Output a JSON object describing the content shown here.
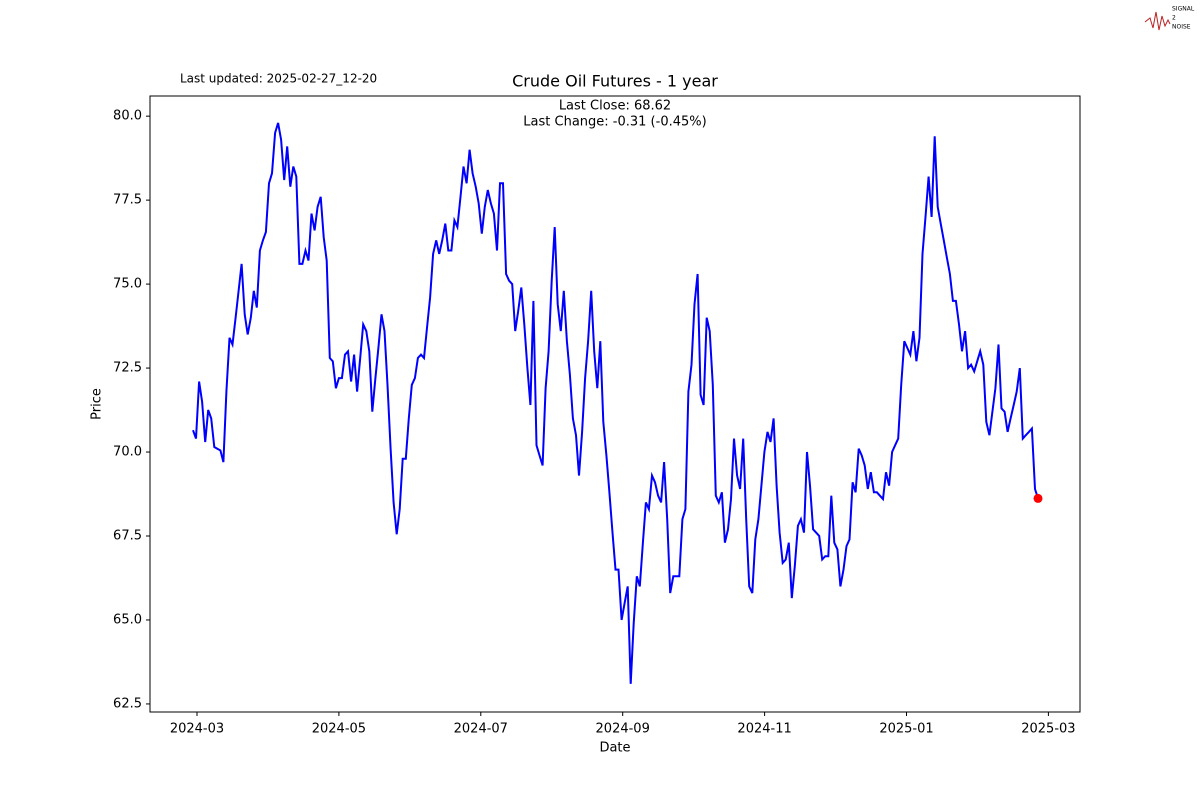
{
  "chart_data": {
    "type": "line",
    "title": "Crude Oil Futures - 1 year",
    "updated": "Last updated: 2025-02-27_12-20",
    "annotations": [
      "Last Close: 68.62",
      "Last Change: -0.31 (-0.45%)"
    ],
    "logo": [
      "SIGNAL",
      "2",
      "NOISE"
    ],
    "x_label": "Date",
    "y_label": "Price",
    "xticks": [
      "2024-03",
      "2024-05",
      "2024-07",
      "2024-09",
      "2024-11",
      "2025-01",
      "2025-03"
    ],
    "ylim": [
      62.26,
      80.6
    ],
    "yticks": [
      {
        "value": 62.5,
        "label": "62.5"
      },
      {
        "value": 65,
        "label": "65.0"
      },
      {
        "value": 67.5,
        "label": "67.5"
      },
      {
        "value": 70,
        "label": "70.0"
      },
      {
        "value": 72.5,
        "label": "72.5"
      },
      {
        "value": 75,
        "label": "75.0"
      },
      {
        "value": 77.5,
        "label": "77.5"
      },
      {
        "value": 80,
        "label": "80.0"
      }
    ],
    "series": [
      {
        "name": "Close",
        "color": "#0000ff",
        "last_color": "#ff0000",
        "values": [
          70.65,
          70.4,
          72.1,
          71.5,
          70.3,
          71.25,
          71.0,
          70.15,
          70.1,
          70.05,
          69.7,
          71.8,
          73.4,
          73.2,
          74.0,
          74.8,
          75.6,
          74.1,
          73.5,
          74.0,
          74.8,
          74.3,
          76.0,
          76.3,
          76.55,
          78.0,
          78.3,
          79.5,
          79.8,
          79.3,
          78.1,
          79.1,
          77.9,
          78.5,
          78.2,
          75.6,
          75.6,
          76.0,
          75.7,
          77.1,
          76.6,
          77.3,
          77.6,
          76.4,
          75.7,
          72.8,
          72.7,
          71.9,
          72.2,
          72.2,
          72.9,
          73.0,
          72.1,
          72.9,
          71.8,
          72.8,
          73.8,
          73.6,
          73.0,
          71.2,
          72.2,
          73.1,
          74.1,
          73.6,
          72.0,
          70.1,
          68.5,
          67.55,
          68.3,
          69.8,
          69.8,
          71.0,
          72.0,
          72.2,
          72.8,
          72.9,
          72.8,
          73.7,
          74.6,
          75.9,
          76.3,
          75.9,
          76.3,
          76.8,
          76.0,
          76.0,
          76.9,
          76.7,
          77.6,
          78.5,
          78.0,
          79.0,
          78.3,
          77.9,
          77.4,
          76.5,
          77.3,
          77.8,
          77.4,
          77.1,
          76.0,
          78.0,
          78.0,
          75.3,
          75.1,
          75.0,
          73.6,
          74.2,
          74.9,
          73.8,
          72.5,
          71.4,
          74.5,
          70.2,
          69.9,
          69.6,
          71.9,
          73.0,
          75.1,
          76.7,
          74.4,
          73.6,
          74.8,
          73.3,
          72.3,
          71.0,
          70.5,
          69.3,
          70.6,
          72.2,
          73.3,
          74.8,
          73.0,
          71.9,
          73.3,
          70.9,
          69.9,
          68.8,
          67.6,
          66.5,
          66.5,
          65.0,
          65.5,
          66.0,
          63.1,
          64.9,
          66.3,
          66.0,
          67.3,
          68.5,
          68.3,
          69.3,
          69.1,
          68.7,
          68.5,
          69.7,
          68.0,
          65.8,
          66.3,
          66.3,
          66.3,
          68.0,
          68.3,
          71.8,
          72.6,
          74.4,
          75.3,
          71.7,
          71.4,
          74.0,
          73.6,
          72.0,
          68.7,
          68.5,
          68.8,
          67.3,
          67.7,
          68.6,
          70.4,
          69.3,
          68.9,
          70.4,
          68.0,
          66.0,
          65.8,
          67.4,
          68.0,
          69.0,
          70.0,
          70.6,
          70.3,
          71.0,
          69.0,
          67.6,
          66.7,
          66.8,
          67.3,
          65.65,
          66.6,
          67.8,
          68.0,
          67.6,
          70.0,
          69.0,
          67.7,
          67.6,
          67.5,
          66.8,
          66.9,
          66.9,
          68.7,
          67.3,
          67.1,
          66.0,
          66.5,
          67.2,
          67.4,
          69.1,
          68.8,
          70.1,
          69.9,
          69.6,
          68.9,
          69.4,
          68.8,
          68.8,
          68.7,
          68.6,
          69.4,
          69.0,
          70.0,
          70.2,
          70.4,
          72.0,
          73.3,
          73.1,
          72.9,
          73.6,
          72.7,
          73.4,
          75.9,
          77.0,
          78.2,
          77.0,
          79.4,
          77.3,
          76.8,
          76.3,
          75.8,
          75.3,
          74.5,
          74.5,
          73.8,
          73.0,
          73.6,
          72.5,
          72.6,
          72.4,
          72.7,
          73.0,
          72.6,
          70.9,
          70.5,
          71.2,
          71.9,
          73.2,
          71.3,
          71.2,
          70.6,
          71.0,
          71.4,
          71.8,
          72.5,
          70.4,
          70.5,
          70.6,
          70.7,
          68.9,
          68.62
        ]
      }
    ]
  }
}
